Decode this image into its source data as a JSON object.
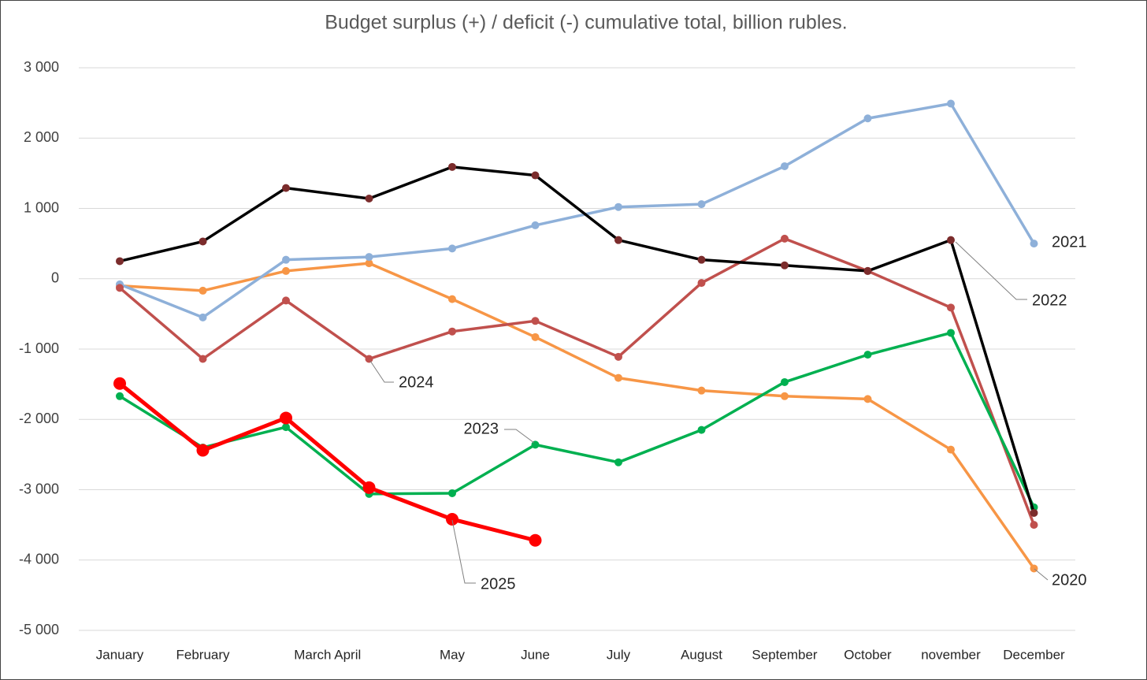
{
  "chart_data": {
    "type": "line",
    "title": "Budget surplus (+) / deficit (-) cumulative total, billion rubles.",
    "categories": [
      "January",
      "February",
      "March April",
      null,
      "May",
      "June",
      "July",
      "August",
      "September",
      "October",
      "november",
      "December"
    ],
    "ylim": [
      -5000,
      3000
    ],
    "yticks": [
      {
        "value": -5000,
        "label": "-5 000"
      },
      {
        "value": -4000,
        "label": "-4 000"
      },
      {
        "value": -3000,
        "label": "-3 000"
      },
      {
        "value": -2000,
        "label": "-2 000"
      },
      {
        "value": -1000,
        "label": "-1 000"
      },
      0,
      {
        "value": 1000,
        "label": "1 000"
      },
      {
        "value": 2000,
        "label": "2 000"
      },
      {
        "value": 3000,
        "label": "3 000"
      }
    ],
    "grid": true,
    "series": [
      {
        "name": "2020",
        "color": "#f79646",
        "values": [
          -100,
          -170,
          110,
          220,
          -290,
          -830,
          -1410,
          -1590,
          -1670,
          -1710,
          -2430,
          -4120
        ]
      },
      {
        "name": "2021",
        "color": "#8eb0d9",
        "values": [
          -80,
          -550,
          270,
          310,
          430,
          760,
          1020,
          1060,
          1600,
          2280,
          2490,
          500
        ]
      },
      {
        "name": "2024",
        "color": "#c0504d",
        "values": [
          -130,
          -1140,
          -310,
          -1140,
          -750,
          -600,
          -1110,
          -60,
          570,
          110,
          -410,
          -3500
        ]
      },
      {
        "name": "2023",
        "color": "#00b050",
        "values": [
          -1670,
          -2400,
          -2110,
          -3060,
          -3050,
          -2360,
          -2610,
          -2150,
          -1470,
          -1080,
          -770,
          -3250
        ]
      },
      {
        "name": "2022",
        "color": "#000000",
        "marker_color": "#7b2c2c",
        "values": [
          250,
          530,
          1290,
          1140,
          1590,
          1470,
          550,
          270,
          190,
          110,
          550,
          -3330
        ]
      },
      {
        "name": "2025",
        "color": "#ff0000",
        "values": [
          -1490,
          -2440,
          -1980,
          -2970,
          -3420,
          -3720,
          null,
          null,
          null,
          null,
          null,
          null
        ]
      }
    ]
  }
}
